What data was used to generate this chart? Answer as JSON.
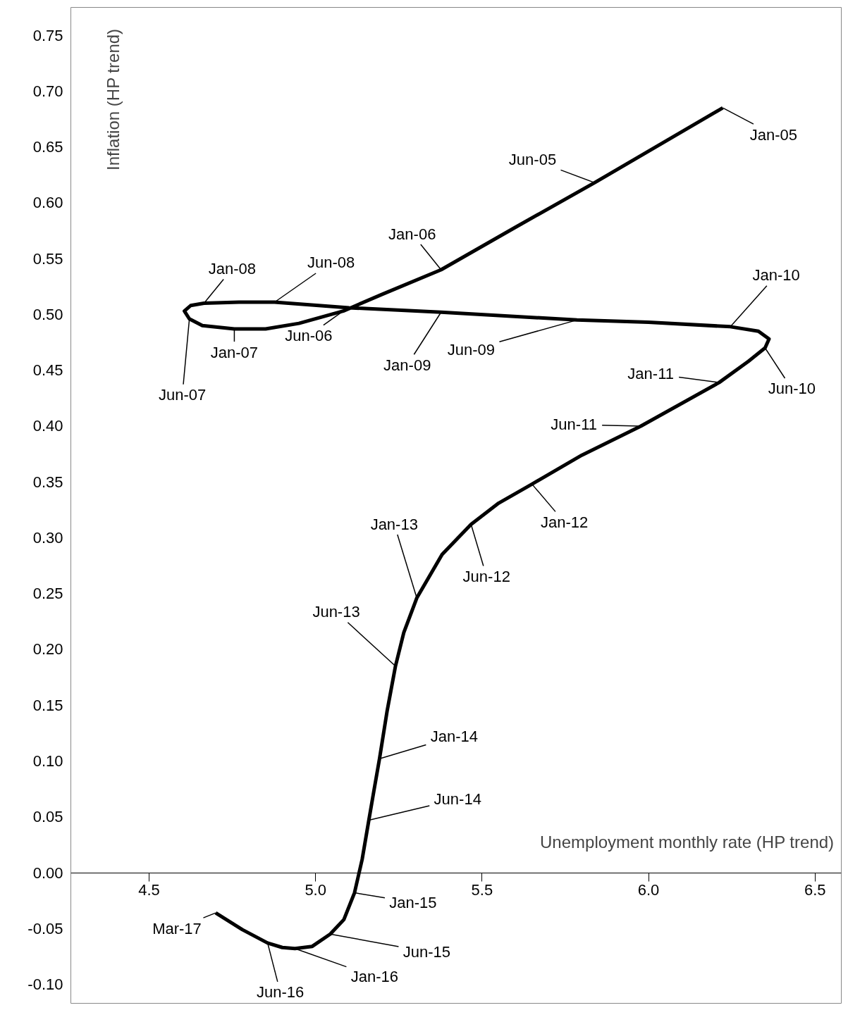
{
  "chart_data": {
    "type": "line",
    "xlabel": "Unemployment monthly rate (HP trend)",
    "ylabel": "Inflation (HP trend)",
    "xlim": [
      4.265,
      6.579
    ],
    "ylim": [
      -0.117,
      0.775
    ],
    "xticks": [
      4.5,
      {
        "value": 5,
        "label": "5.0"
      },
      5.5,
      {
        "value": 6,
        "label": "6.0"
      },
      6.5
    ],
    "yticks": [
      {
        "value": -0.1,
        "label": "-0.10"
      },
      {
        "value": -0.05,
        "label": "-0.05"
      },
      {
        "value": 0,
        "label": "0.00"
      },
      {
        "value": 0.05,
        "label": "0.05"
      },
      {
        "value": 0.1,
        "label": "0.10"
      },
      {
        "value": 0.15,
        "label": "0.15"
      },
      {
        "value": 0.2,
        "label": "0.20"
      },
      {
        "value": 0.25,
        "label": "0.25"
      },
      {
        "value": 0.3,
        "label": "0.30"
      },
      {
        "value": 0.35,
        "label": "0.35"
      },
      {
        "value": 0.4,
        "label": "0.40"
      },
      {
        "value": 0.45,
        "label": "0.45"
      },
      {
        "value": 0.5,
        "label": "0.50"
      },
      {
        "value": 0.55,
        "label": "0.55"
      },
      {
        "value": 0.6,
        "label": "0.60"
      },
      {
        "value": 0.65,
        "label": "0.65"
      },
      {
        "value": 0.7,
        "label": "0.70"
      },
      {
        "value": 0.75,
        "label": "0.75"
      }
    ],
    "grid": false,
    "marker": "none",
    "line_style": "solid",
    "series": [
      {
        "color": "#000000",
        "x": [
          6.223,
          5.838,
          5.6,
          5.377,
          5.2,
          5.083,
          4.95,
          4.85,
          4.756,
          4.66,
          4.621,
          4.606,
          4.625,
          4.665,
          4.77,
          4.877,
          5.1,
          5.377,
          5.785,
          6.0,
          6.246,
          6.33,
          6.362,
          6.35,
          6.3,
          6.212,
          5.977,
          5.8,
          5.65,
          5.55,
          5.467,
          5.38,
          5.304,
          5.265,
          5.24,
          5.215,
          5.192,
          5.175,
          5.16,
          5.14,
          5.117,
          5.085,
          5.044,
          4.99,
          4.938,
          4.9,
          4.856,
          4.78,
          4.7
        ],
        "values": [
          0.685,
          0.618,
          0.578,
          0.54,
          0.518,
          0.503,
          0.492,
          0.487,
          0.487,
          0.49,
          0.496,
          0.503,
          0.508,
          0.51,
          0.511,
          0.511,
          0.506,
          0.502,
          0.495,
          0.493,
          0.489,
          0.485,
          0.478,
          0.47,
          0.458,
          0.439,
          0.4,
          0.374,
          0.348,
          0.331,
          0.312,
          0.285,
          0.246,
          0.215,
          0.185,
          0.145,
          0.102,
          0.073,
          0.047,
          0.012,
          -0.018,
          -0.042,
          -0.055,
          -0.066,
          -0.068,
          -0.067,
          -0.063,
          -0.051,
          -0.036
        ]
      }
    ],
    "annotations": [
      {
        "text": "Jan-05",
        "x": 6.223,
        "y": 0.685
      },
      {
        "text": "Jun-05",
        "x": 5.838,
        "y": 0.618
      },
      {
        "text": "Jan-06",
        "x": 5.377,
        "y": 0.54
      },
      {
        "text": "Jun-06",
        "x": 5.083,
        "y": 0.503
      },
      {
        "text": "Jan-07",
        "x": 4.756,
        "y": 0.487
      },
      {
        "text": "Jun-07",
        "x": 4.621,
        "y": 0.496
      },
      {
        "text": "Jan-08",
        "x": 4.665,
        "y": 0.51
      },
      {
        "text": "Jun-08",
        "x": 4.877,
        "y": 0.511
      },
      {
        "text": "Jan-09",
        "x": 5.377,
        "y": 0.502
      },
      {
        "text": "Jun-09",
        "x": 5.785,
        "y": 0.495
      },
      {
        "text": "Jan-10",
        "x": 6.246,
        "y": 0.489
      },
      {
        "text": "Jun-10",
        "x": 6.35,
        "y": 0.47
      },
      {
        "text": "Jan-11",
        "x": 6.212,
        "y": 0.439
      },
      {
        "text": "Jun-11",
        "x": 5.977,
        "y": 0.4
      },
      {
        "text": "Jan-12",
        "x": 5.65,
        "y": 0.348
      },
      {
        "text": "Jun-12",
        "x": 5.467,
        "y": 0.312
      },
      {
        "text": "Jan-13",
        "x": 5.304,
        "y": 0.246
      },
      {
        "text": "Jun-13",
        "x": 5.24,
        "y": 0.185
      },
      {
        "text": "Jan-14",
        "x": 5.192,
        "y": 0.102
      },
      {
        "text": "Jun-14",
        "x": 5.16,
        "y": 0.047
      },
      {
        "text": "Jan-15",
        "x": 5.117,
        "y": -0.018
      },
      {
        "text": "Jun-15",
        "x": 5.044,
        "y": -0.055
      },
      {
        "text": "Jan-16",
        "x": 4.938,
        "y": -0.068
      },
      {
        "text": "Jun-16",
        "x": 4.856,
        "y": -0.063
      },
      {
        "text": "Mar-17",
        "x": 4.7,
        "y": -0.036
      }
    ]
  }
}
